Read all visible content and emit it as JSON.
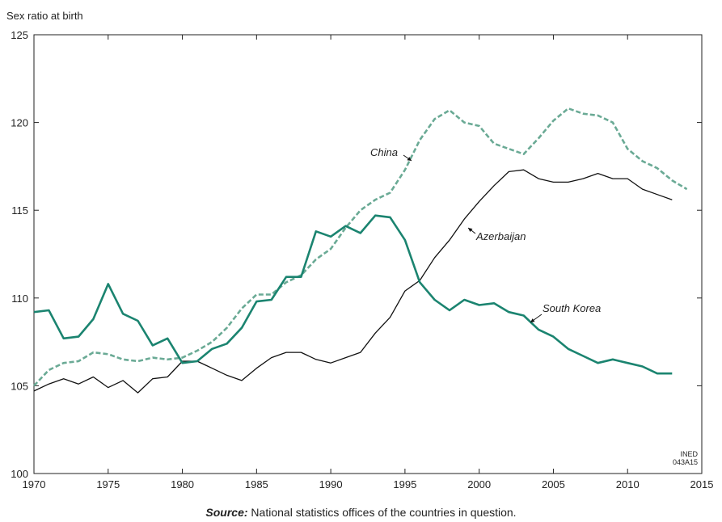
{
  "chart_data": {
    "type": "line",
    "ylabel": "Sex ratio at birth",
    "xlim": [
      1970,
      2015
    ],
    "ylim": [
      100,
      125
    ],
    "x_ticks": [
      1970,
      1975,
      1980,
      1985,
      1990,
      1995,
      2000,
      2005,
      2010,
      2015
    ],
    "y_ticks": [
      100,
      105,
      110,
      115,
      120,
      125
    ],
    "grid": false,
    "series": [
      {
        "name": "China",
        "color": "#6aaa95",
        "style": "dashed",
        "x": [
          1970,
          1971,
          1972,
          1973,
          1974,
          1975,
          1976,
          1977,
          1978,
          1979,
          1980,
          1981,
          1982,
          1983,
          1984,
          1985,
          1986,
          1987,
          1988,
          1989,
          1990,
          1991,
          1992,
          1993,
          1994,
          1995,
          1996,
          1997,
          1998,
          1999,
          2000,
          2001,
          2002,
          2003,
          2004,
          2005,
          2006,
          2007,
          2008,
          2009,
          2010,
          2011,
          2012,
          2013,
          2014
        ],
        "y": [
          105.0,
          105.9,
          106.3,
          106.4,
          106.9,
          106.8,
          106.5,
          106.4,
          106.6,
          106.5,
          106.6,
          107.0,
          107.5,
          108.3,
          109.4,
          110.2,
          110.2,
          110.9,
          111.3,
          112.2,
          112.8,
          114.0,
          115.0,
          115.6,
          116.0,
          117.3,
          119.0,
          120.2,
          120.7,
          120.0,
          119.8,
          118.8,
          118.5,
          118.2,
          119.1,
          120.1,
          120.8,
          120.5,
          120.4,
          120.0,
          118.5,
          117.8,
          117.4,
          116.7,
          116.2
        ]
      },
      {
        "name": "Azerbaijan",
        "color": "#111111",
        "style": "solid",
        "x": [
          1970,
          1971,
          1972,
          1973,
          1974,
          1975,
          1976,
          1977,
          1978,
          1979,
          1980,
          1981,
          1982,
          1983,
          1984,
          1985,
          1986,
          1987,
          1988,
          1989,
          1990,
          1991,
          1992,
          1993,
          1994,
          1995,
          1996,
          1997,
          1998,
          1999,
          2000,
          2001,
          2002,
          2003,
          2004,
          2005,
          2006,
          2007,
          2008,
          2009,
          2010,
          2011,
          2012,
          2013
        ],
        "y": [
          104.7,
          105.1,
          105.4,
          105.1,
          105.5,
          104.9,
          105.3,
          104.6,
          105.4,
          105.5,
          106.4,
          106.4,
          106.0,
          105.6,
          105.3,
          106.0,
          106.6,
          106.9,
          106.9,
          106.5,
          106.3,
          106.6,
          106.9,
          108.0,
          108.9,
          110.4,
          111.0,
          112.3,
          113.3,
          114.5,
          115.5,
          116.4,
          117.2,
          117.3,
          116.8,
          116.6,
          116.6,
          116.8,
          117.1,
          116.8,
          116.8,
          116.2,
          115.9,
          115.6
        ]
      },
      {
        "name": "South Korea",
        "color": "#1b8470",
        "style": "solid",
        "x": [
          1970,
          1971,
          1972,
          1973,
          1974,
          1975,
          1976,
          1977,
          1978,
          1979,
          1980,
          1981,
          1982,
          1983,
          1984,
          1985,
          1986,
          1987,
          1988,
          1989,
          1990,
          1991,
          1992,
          1993,
          1994,
          1995,
          1996,
          1997,
          1998,
          1999,
          2000,
          2001,
          2002,
          2003,
          2004,
          2005,
          2006,
          2007,
          2008,
          2009,
          2010,
          2011,
          2012,
          2013
        ],
        "y": [
          109.2,
          109.3,
          107.7,
          107.8,
          108.8,
          110.8,
          109.1,
          108.7,
          107.3,
          107.7,
          106.3,
          106.4,
          107.1,
          107.4,
          108.3,
          109.8,
          109.9,
          111.2,
          111.2,
          113.8,
          113.5,
          114.1,
          113.7,
          114.7,
          114.6,
          113.3,
          110.9,
          109.9,
          109.3,
          109.9,
          109.6,
          109.7,
          109.2,
          109.0,
          108.2,
          107.8,
          107.1,
          106.7,
          106.3,
          106.5,
          106.3,
          106.1,
          105.7,
          105.7
        ]
      }
    ],
    "annotations": [
      {
        "label": "China",
        "series": "China"
      },
      {
        "label": "Azerbaijan",
        "series": "Azerbaijan"
      },
      {
        "label": "South Korea",
        "series": "South Korea"
      }
    ],
    "credit": [
      "INED",
      "043A15"
    ]
  },
  "source": {
    "label": "Source:",
    "text": " National statistics offices of the countries in question."
  }
}
